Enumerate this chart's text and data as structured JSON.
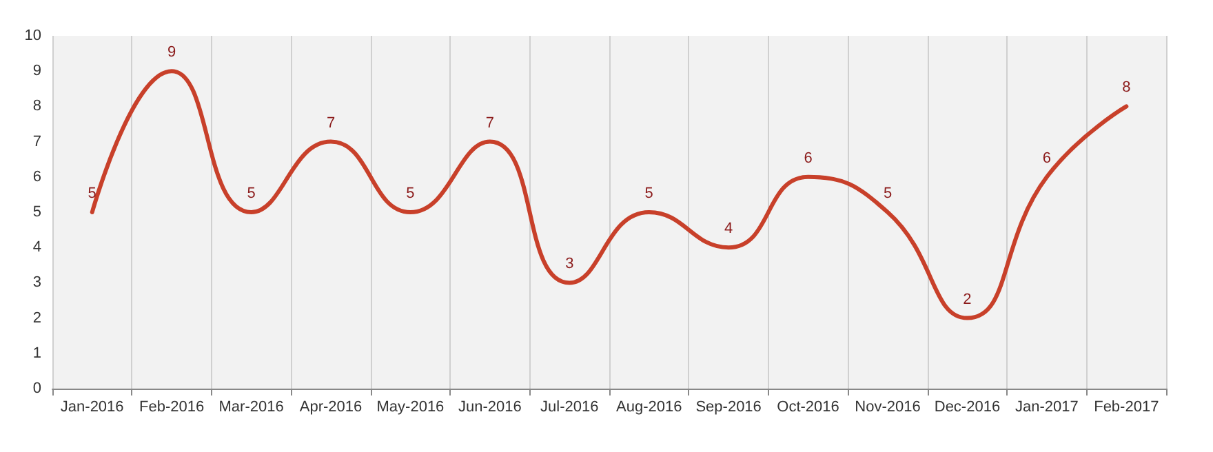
{
  "chart_data": {
    "type": "line",
    "categories": [
      "Jan-2016",
      "Feb-2016",
      "Mar-2016",
      "Apr-2016",
      "May-2016",
      "Jun-2016",
      "Jul-2016",
      "Aug-2016",
      "Sep-2016",
      "Oct-2016",
      "Nov-2016",
      "Dec-2016",
      "Jan-2017",
      "Feb-2017"
    ],
    "series": [
      {
        "color": "#c8402a",
        "values": [
          5,
          9,
          5,
          7,
          5,
          7,
          3,
          5,
          4,
          6,
          5,
          2,
          6,
          8
        ]
      }
    ],
    "ylim": [
      0,
      10
    ],
    "yticks": [
      0,
      1,
      2,
      3,
      4,
      5,
      6,
      7,
      8,
      9,
      10
    ],
    "grid": "x",
    "data_labels": true,
    "marker": "none",
    "line_style": "solid"
  }
}
